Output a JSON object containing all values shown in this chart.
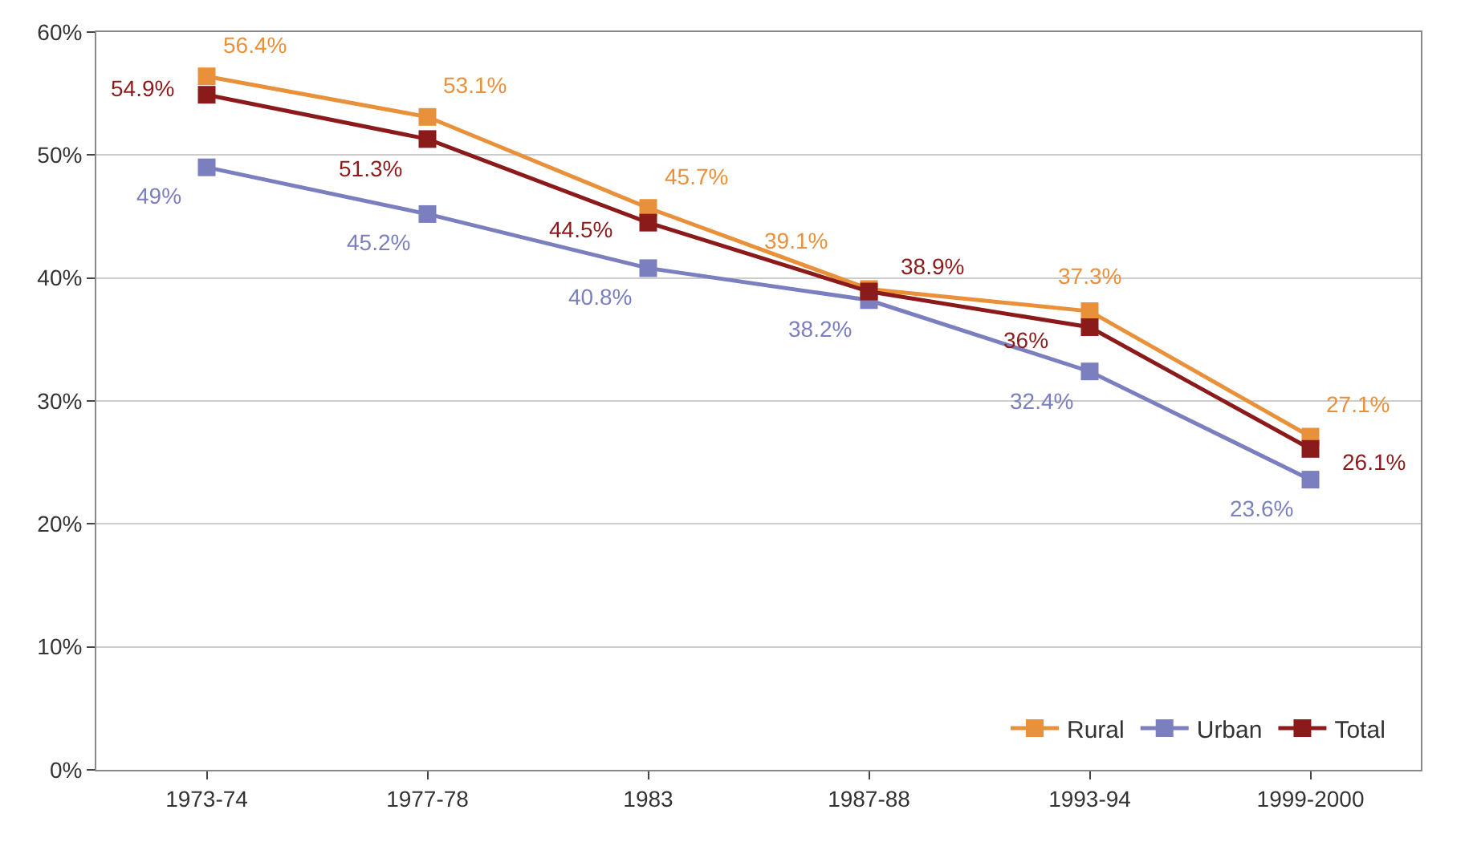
{
  "chart_data": {
    "type": "line",
    "categories": [
      "1973-74",
      "1977-78",
      "1983",
      "1987-88",
      "1993-94",
      "1999-2000"
    ],
    "series": [
      {
        "name": "Rural",
        "color": "#e8913a",
        "values": [
          56.4,
          53.1,
          45.7,
          39.1,
          37.3,
          27.1
        ],
        "value_labels": [
          "56.4%",
          "53.1%",
          "45.7%",
          "39.1%",
          "37.3%",
          "27.1%"
        ]
      },
      {
        "name": "Urban",
        "color": "#7b7fbf",
        "values": [
          49,
          45.2,
          40.8,
          38.2,
          32.4,
          23.6
        ],
        "value_labels": [
          "49%",
          "45.2%",
          "40.8%",
          "38.2%",
          "32.4%",
          "23.6%"
        ]
      },
      {
        "name": "Total",
        "color": "#8b1a1a",
        "values": [
          54.9,
          51.3,
          44.5,
          38.9,
          36,
          26.1
        ],
        "value_labels": [
          "54.9%",
          "51.3%",
          "44.5%",
          "38.9%",
          "36%",
          "26.1%"
        ]
      }
    ],
    "ylim": [
      0,
      60
    ],
    "yticks": [
      {
        "value": 0,
        "label": "0%"
      },
      {
        "value": 10,
        "label": "10%"
      },
      {
        "value": 20,
        "label": "20%"
      },
      {
        "value": 30,
        "label": "30%"
      },
      {
        "value": 40,
        "label": "40%"
      },
      {
        "value": 50,
        "label": "50%"
      },
      {
        "value": 60,
        "label": "60%"
      }
    ],
    "grid": "y",
    "legend": "bottom right",
    "marker": "square",
    "line_style": "solid"
  }
}
